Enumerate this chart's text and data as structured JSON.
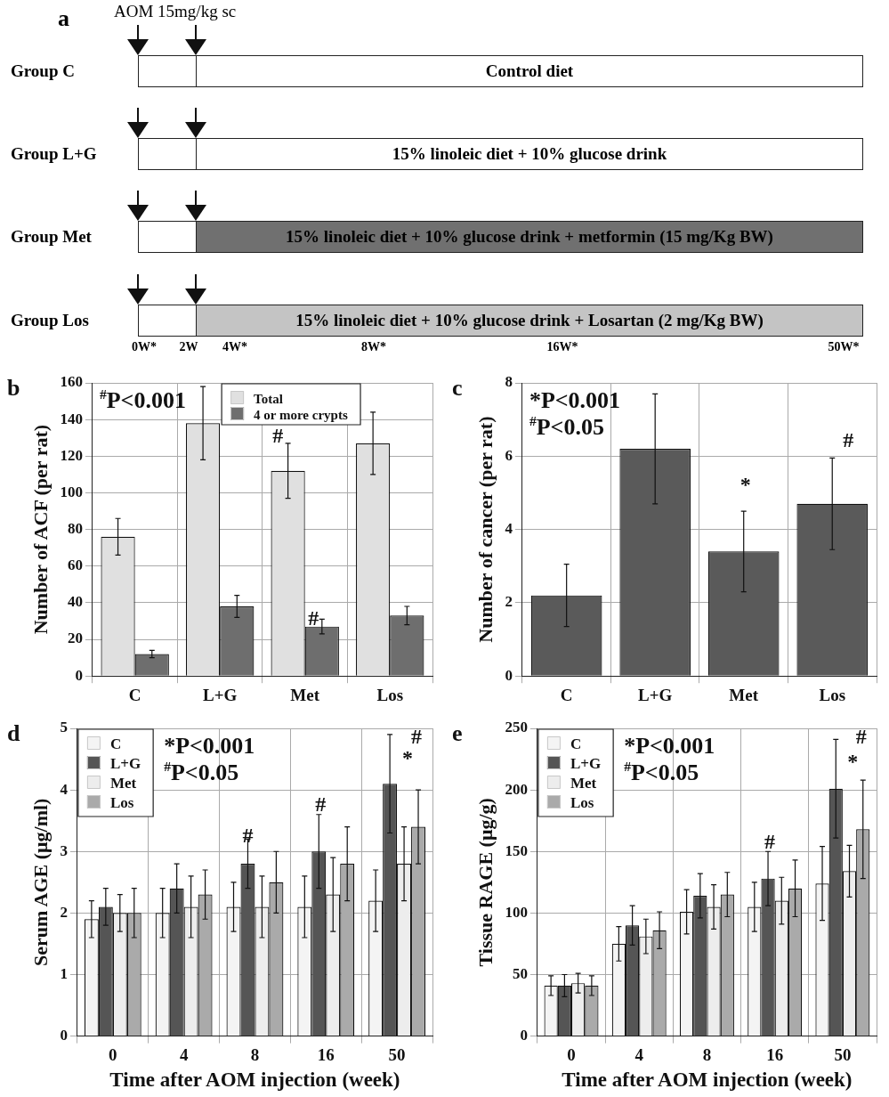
{
  "chart_data": [
    {
      "type": "other",
      "title": "a",
      "categories": [
        "Group C",
        "Group L+G",
        "Group Met",
        "Group Los"
      ],
      "colors": [
        "#ffffff",
        "#ffffff",
        "#707070",
        "#c4c4c4"
      ],
      "annotations": [
        "AOM 15mg/kg sc",
        "Control diet",
        "15% linoleic diet + 10% glucose drink",
        "15% linoleic diet + 10% glucose drink + metformin (15 mg/Kg BW)",
        "15% linoleic diet + 10% glucose drink + Losartan (2 mg/Kg BW)",
        "0W*",
        "2W",
        "4W*",
        "8W*",
        "16W*",
        "50W*"
      ]
    },
    {
      "type": "bar",
      "title": "b",
      "ylabel": "Number of ACF (per rat)",
      "categories": [
        "C",
        "L+G",
        "Met",
        "Los"
      ],
      "series": [
        {
          "name": "Total",
          "color": "#e0e0e0",
          "values": [
            76,
            138,
            112,
            127
          ],
          "errors": [
            10,
            20,
            15,
            17
          ]
        },
        {
          "name": "4 or more crypts",
          "color": "#6e6e6e",
          "values": [
            12,
            38,
            27,
            33
          ],
          "errors": [
            2,
            6,
            4,
            5
          ]
        }
      ],
      "ylim": [
        0,
        160
      ],
      "yticks": [
        0,
        20,
        40,
        60,
        80,
        100,
        120,
        140,
        160
      ],
      "grid": true,
      "legend": "top",
      "annotations": [
        "$^{#}$P<0.001",
        "#",
        "#"
      ]
    },
    {
      "type": "bar",
      "title": "c",
      "ylabel": "Number of cancer (per rat)",
      "categories": [
        "C",
        "L+G",
        "Met",
        "Los"
      ],
      "series": [
        {
          "color": "#5a5a5a",
          "values": [
            2.2,
            6.2,
            3.4,
            4.7
          ],
          "errors": [
            0.85,
            1.5,
            1.1,
            1.25
          ]
        }
      ],
      "ylim": [
        0,
        8
      ],
      "yticks": [
        0,
        2,
        4,
        6,
        8
      ],
      "grid": true,
      "annotations": [
        "*P<0.001",
        "$^{#}$P<0.05",
        "*",
        "#"
      ]
    },
    {
      "type": "bar",
      "title": "d",
      "xlabel": "Time after AOM injection (week)",
      "ylabel": "Serum AGE (μg/ml)",
      "categories": [
        "0",
        "4",
        "8",
        "16",
        "50"
      ],
      "series": [
        {
          "name": "C",
          "color": "#f4f4f4",
          "values": [
            1.9,
            2.0,
            2.1,
            2.1,
            2.2
          ],
          "errors": [
            0.3,
            0.4,
            0.4,
            0.5,
            0.5
          ]
        },
        {
          "name": "L+G",
          "color": "#555555",
          "values": [
            2.1,
            2.4,
            2.8,
            3.0,
            4.1
          ],
          "errors": [
            0.3,
            0.4,
            0.4,
            0.6,
            0.8
          ]
        },
        {
          "name": "Met",
          "color": "#ededed",
          "values": [
            2.0,
            2.1,
            2.1,
            2.3,
            2.8
          ],
          "errors": [
            0.3,
            0.5,
            0.5,
            0.6,
            0.6
          ]
        },
        {
          "name": "Los",
          "color": "#aaaaaa",
          "values": [
            2.0,
            2.3,
            2.5,
            2.8,
            3.4
          ],
          "errors": [
            0.4,
            0.4,
            0.5,
            0.6,
            0.6
          ]
        }
      ],
      "ylim": [
        0,
        5
      ],
      "yticks": [
        0,
        1,
        2,
        3,
        4,
        5
      ],
      "grid": true,
      "legend": "top left",
      "annotations": [
        "*P<0.001",
        "$^{#}$P<0.05",
        "#",
        "#",
        "*",
        "#"
      ]
    },
    {
      "type": "bar",
      "title": "e",
      "xlabel": "Time after AOM injection (week)",
      "ylabel": "Tissue RAGE (μg/g)",
      "categories": [
        "0",
        "4",
        "8",
        "16",
        "50"
      ],
      "series": [
        {
          "name": "C",
          "color": "#f4f4f4",
          "values": [
            41,
            75,
            101,
            105,
            124
          ],
          "errors": [
            8,
            14,
            18,
            20,
            30
          ]
        },
        {
          "name": "L+G",
          "color": "#555555",
          "values": [
            41,
            90,
            114,
            128,
            201
          ],
          "errors": [
            9,
            16,
            18,
            22,
            40
          ]
        },
        {
          "name": "Met",
          "color": "#ededed",
          "values": [
            43,
            81,
            105,
            110,
            134
          ],
          "errors": [
            8,
            14,
            18,
            19,
            21
          ]
        },
        {
          "name": "Los",
          "color": "#aaaaaa",
          "values": [
            41,
            86,
            115,
            120,
            168
          ],
          "errors": [
            8,
            15,
            18,
            23,
            40
          ]
        }
      ],
      "ylim": [
        0,
        250
      ],
      "yticks": [
        0,
        50,
        100,
        150,
        200,
        250
      ],
      "grid": true,
      "legend": "top left",
      "annotations": [
        "*P<0.001",
        "$^{#}$P<0.05",
        "#",
        "*",
        "#"
      ]
    }
  ]
}
